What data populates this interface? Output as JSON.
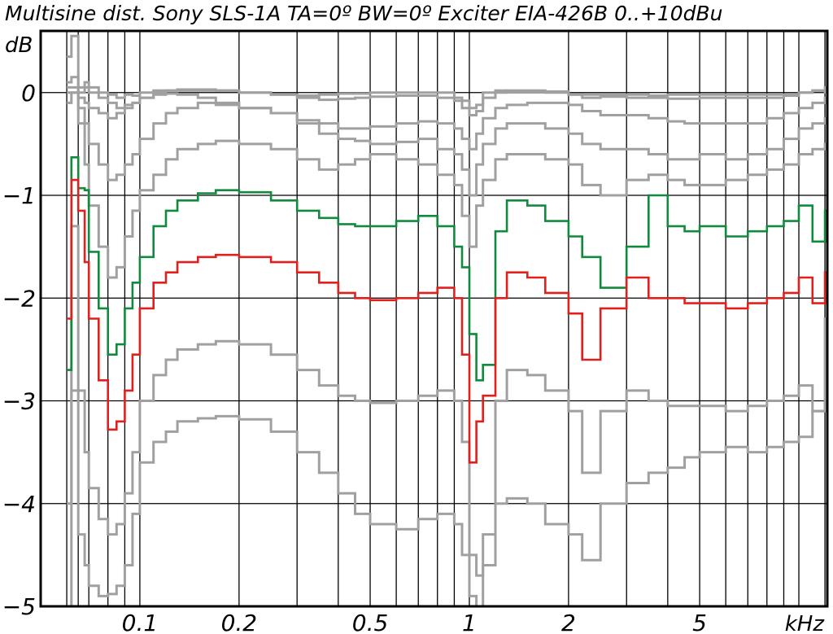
{
  "chart_data": {
    "type": "line",
    "title": "Multisine dist. Sony SLS-1A TA=0º BW=0º Exciter EIA-426B 0..+10dBu",
    "ylabel": "dB",
    "xlabel": "kHz",
    "x_scale": "log",
    "x_unit": "kHz",
    "xlim": [
      0.06,
      12
    ],
    "ylim": [
      -5,
      0.6
    ],
    "grid": true,
    "x_major_ticks": [
      0.1,
      0.2,
      0.5,
      1,
      2,
      5,
      10
    ],
    "x_tick_labels": [
      "0.1",
      "0.2",
      "0.5",
      "1",
      "2",
      "5",
      "kHz"
    ],
    "x_minor_ticks": [
      0.06,
      0.065,
      0.07,
      0.08,
      0.09,
      0.3,
      0.4,
      0.6,
      0.7,
      0.8,
      0.9,
      3,
      4,
      6,
      7,
      8,
      9,
      12
    ],
    "y_ticks": [
      0,
      -1,
      -2,
      -3,
      -4,
      -5
    ],
    "y_tick_labels": [
      "0",
      "−1",
      "−2",
      "−3",
      "−4",
      "−5"
    ],
    "series_style": "step",
    "colors": {
      "green": "#108a3c",
      "red": "#e0201c",
      "gray": "#a0a0a0",
      "axis": "#000000"
    },
    "series": [
      {
        "color": "gray",
        "x": [
          0.06,
          0.062,
          0.065,
          0.068,
          0.07,
          0.075,
          0.08,
          0.085,
          0.09,
          0.095,
          0.1,
          0.11,
          0.12,
          0.13,
          0.15,
          0.17,
          0.2,
          0.25,
          0.3,
          0.35,
          0.4,
          0.45,
          0.5,
          0.6,
          0.7,
          0.8,
          0.9,
          0.95,
          1,
          1.05,
          1.1,
          1.2,
          1.3,
          1.5,
          1.7,
          2,
          2.2,
          2.5,
          3,
          3.5,
          4,
          4.5,
          5,
          6,
          7,
          8,
          9,
          10,
          11,
          12
        ],
        "y": [
          0.35,
          0.55,
          0.05,
          0.1,
          0.05,
          0.0,
          -0.02,
          -0.05,
          -0.02,
          -0.03,
          0.0,
          0.02,
          0.02,
          0.02,
          0.02,
          0.02,
          0.0,
          -0.02,
          -0.03,
          -0.02,
          -0.01,
          -0.01,
          0.0,
          0.0,
          0.0,
          0.0,
          -0.05,
          -0.08,
          -0.15,
          -0.12,
          0.0,
          0.02,
          0.01,
          0.01,
          0.0,
          -0.02,
          -0.02,
          -0.02,
          -0.02,
          -0.03,
          -0.02,
          -0.02,
          -0.02,
          -0.02,
          -0.02,
          -0.02,
          -0.02,
          0.0,
          0.02,
          0.0
        ]
      },
      {
        "color": "gray",
        "x": [
          0.06,
          0.062,
          0.065,
          0.068,
          0.07,
          0.075,
          0.08,
          0.085,
          0.09,
          0.095,
          0.1,
          0.11,
          0.12,
          0.13,
          0.15,
          0.17,
          0.2,
          0.25,
          0.3,
          0.35,
          0.4,
          0.45,
          0.5,
          0.6,
          0.7,
          0.8,
          0.9,
          0.95,
          1,
          1.05,
          1.1,
          1.2,
          1.3,
          1.5,
          1.7,
          2,
          2.2,
          2.5,
          3,
          3.5,
          4,
          4.5,
          5,
          6,
          7,
          8,
          9,
          10,
          11,
          12
        ],
        "y": [
          0.1,
          0.15,
          0.0,
          0.05,
          0.0,
          -0.05,
          -0.1,
          -0.15,
          -0.12,
          -0.1,
          -0.05,
          0.0,
          0.02,
          0.03,
          0.03,
          0.02,
          0.0,
          -0.02,
          -0.05,
          -0.07,
          -0.06,
          -0.05,
          -0.04,
          -0.03,
          -0.03,
          -0.05,
          -0.08,
          -0.15,
          -0.22,
          -0.18,
          -0.05,
          0.0,
          0.02,
          0.02,
          0.01,
          -0.02,
          -0.05,
          -0.04,
          -0.05,
          -0.05,
          -0.06,
          -0.06,
          -0.05,
          -0.05,
          -0.05,
          -0.05,
          -0.03,
          0.0,
          0.02,
          0.05
        ]
      },
      {
        "color": "gray",
        "x": [
          0.06,
          0.062,
          0.065,
          0.068,
          0.07,
          0.075,
          0.08,
          0.085,
          0.09,
          0.095,
          0.1,
          0.11,
          0.12,
          0.13,
          0.15,
          0.17,
          0.2,
          0.25,
          0.3,
          0.35,
          0.4,
          0.45,
          0.5,
          0.6,
          0.7,
          0.8,
          0.9,
          0.95,
          1,
          1.05,
          1.1,
          1.2,
          1.3,
          1.5,
          1.7,
          2,
          2.2,
          2.5,
          3,
          3.5,
          4,
          4.5,
          5,
          6,
          7,
          8,
          9,
          10,
          11,
          12
        ],
        "y": [
          0.05,
          0.05,
          -0.05,
          -0.1,
          -0.15,
          -0.2,
          -0.25,
          -0.2,
          -0.15,
          -0.1,
          -0.05,
          -0.02,
          -0.01,
          -0.02,
          -0.05,
          -0.1,
          -0.15,
          -0.2,
          -0.27,
          -0.3,
          -0.35,
          -0.35,
          -0.33,
          -0.3,
          -0.28,
          -0.3,
          -0.35,
          -0.45,
          -0.55,
          -0.4,
          -0.25,
          -0.15,
          -0.12,
          -0.1,
          -0.1,
          -0.12,
          -0.18,
          -0.22,
          -0.22,
          -0.25,
          -0.28,
          -0.3,
          -0.3,
          -0.3,
          -0.3,
          -0.25,
          -0.2,
          -0.15,
          -0.1,
          -0.05
        ]
      },
      {
        "color": "gray",
        "x": [
          0.06,
          0.062,
          0.065,
          0.068,
          0.07,
          0.075,
          0.08,
          0.085,
          0.09,
          0.095,
          0.1,
          0.11,
          0.12,
          0.13,
          0.15,
          0.17,
          0.2,
          0.25,
          0.3,
          0.35,
          0.4,
          0.45,
          0.5,
          0.6,
          0.7,
          0.8,
          0.9,
          0.95,
          1,
          1.05,
          1.1,
          1.2,
          1.3,
          1.5,
          1.7,
          2,
          2.2,
          2.5,
          3,
          3.5,
          4,
          4.5,
          5,
          6,
          7,
          8,
          9,
          10,
          11,
          12
        ],
        "y": [
          0.0,
          0.0,
          -0.15,
          -0.3,
          -0.5,
          -0.7,
          -0.85,
          -0.8,
          -0.7,
          -0.6,
          -0.45,
          -0.3,
          -0.2,
          -0.15,
          -0.1,
          -0.12,
          -0.15,
          -0.2,
          -0.3,
          -0.4,
          -0.45,
          -0.47,
          -0.5,
          -0.48,
          -0.45,
          -0.55,
          -0.6,
          -0.75,
          -1.0,
          -0.7,
          -0.5,
          -0.35,
          -0.3,
          -0.3,
          -0.35,
          -0.4,
          -0.5,
          -0.55,
          -0.55,
          -0.6,
          -0.65,
          -0.65,
          -0.6,
          -0.65,
          -0.6,
          -0.55,
          -0.45,
          -0.35,
          -0.3,
          -0.25
        ]
      },
      {
        "color": "gray",
        "x": [
          0.06,
          0.062,
          0.065,
          0.068,
          0.07,
          0.075,
          0.08,
          0.085,
          0.09,
          0.095,
          0.1,
          0.11,
          0.12,
          0.13,
          0.15,
          0.17,
          0.2,
          0.25,
          0.3,
          0.35,
          0.4,
          0.45,
          0.5,
          0.6,
          0.7,
          0.8,
          0.9,
          0.95,
          1,
          1.05,
          1.1,
          1.2,
          1.3,
          1.5,
          1.7,
          2,
          2.2,
          2.5,
          3,
          3.5,
          4,
          4.5,
          5,
          6,
          7,
          8,
          9,
          10,
          11,
          12
        ],
        "y": [
          -0.1,
          0.0,
          -0.3,
          -0.7,
          -1.1,
          -1.5,
          -1.8,
          -1.7,
          -1.4,
          -1.15,
          -0.95,
          -0.8,
          -0.65,
          -0.55,
          -0.5,
          -0.47,
          -0.5,
          -0.55,
          -0.65,
          -0.75,
          -0.7,
          -0.65,
          -0.6,
          -0.65,
          -0.7,
          -0.8,
          -0.9,
          -1.2,
          -1.5,
          -1.1,
          -0.85,
          -0.65,
          -0.6,
          -0.6,
          -0.65,
          -0.7,
          -0.9,
          -1.0,
          -0.85,
          -0.8,
          -0.85,
          -0.9,
          -0.9,
          -0.85,
          -0.8,
          -0.75,
          -0.7,
          -0.6,
          -0.55,
          -0.5
        ]
      },
      {
        "name": "",
        "color": "green",
        "x": [
          0.06,
          0.062,
          0.065,
          0.068,
          0.07,
          0.075,
          0.08,
          0.085,
          0.09,
          0.095,
          0.1,
          0.11,
          0.12,
          0.13,
          0.15,
          0.17,
          0.2,
          0.25,
          0.3,
          0.35,
          0.4,
          0.45,
          0.5,
          0.6,
          0.7,
          0.8,
          0.9,
          0.95,
          1,
          1.05,
          1.1,
          1.2,
          1.3,
          1.5,
          1.7,
          2,
          2.2,
          2.5,
          3,
          3.5,
          4,
          4.5,
          5,
          6,
          7,
          8,
          9,
          10,
          11,
          12
        ],
        "y": [
          -2.7,
          -0.63,
          -0.93,
          -0.95,
          -1.55,
          -2.1,
          -2.55,
          -2.45,
          -2.1,
          -1.85,
          -1.6,
          -1.3,
          -1.15,
          -1.05,
          -0.98,
          -0.95,
          -0.97,
          -1.05,
          -1.15,
          -1.22,
          -1.28,
          -1.3,
          -1.3,
          -1.25,
          -1.2,
          -1.3,
          -1.5,
          -1.7,
          -2.35,
          -2.8,
          -2.65,
          -1.35,
          -1.05,
          -1.1,
          -1.25,
          -1.4,
          -1.6,
          -1.9,
          -1.5,
          -1.0,
          -1.3,
          -1.35,
          -1.3,
          -1.4,
          -1.35,
          -1.3,
          -1.25,
          -1.1,
          -1.45,
          -1.15
        ]
      },
      {
        "name": "",
        "color": "red",
        "x": [
          0.06,
          0.062,
          0.065,
          0.068,
          0.07,
          0.075,
          0.08,
          0.085,
          0.09,
          0.095,
          0.1,
          0.11,
          0.12,
          0.13,
          0.15,
          0.17,
          0.2,
          0.25,
          0.3,
          0.35,
          0.4,
          0.45,
          0.5,
          0.6,
          0.7,
          0.8,
          0.9,
          0.95,
          1,
          1.05,
          1.1,
          1.2,
          1.3,
          1.5,
          1.7,
          2,
          2.2,
          2.5,
          3,
          3.5,
          4,
          4.5,
          5,
          6,
          7,
          8,
          9,
          10,
          11,
          12
        ],
        "y": [
          -2.2,
          -0.85,
          -1.15,
          -1.65,
          -2.2,
          -2.8,
          -3.28,
          -3.2,
          -2.9,
          -2.55,
          -2.1,
          -1.85,
          -1.75,
          -1.65,
          -1.6,
          -1.58,
          -1.6,
          -1.65,
          -1.75,
          -1.85,
          -1.95,
          -2.0,
          -2.02,
          -2.0,
          -1.95,
          -1.9,
          -2.0,
          -2.55,
          -3.6,
          -3.2,
          -2.95,
          -2.0,
          -1.75,
          -1.8,
          -1.95,
          -2.15,
          -2.6,
          -2.1,
          -1.8,
          -2.0,
          -2.0,
          -2.05,
          -2.05,
          -2.1,
          -2.05,
          -2.0,
          -1.95,
          -1.8,
          -2.05,
          -1.75
        ]
      },
      {
        "color": "gray",
        "x": [
          0.06,
          0.062,
          0.065,
          0.068,
          0.07,
          0.075,
          0.08,
          0.085,
          0.09,
          0.095,
          0.1,
          0.11,
          0.12,
          0.13,
          0.15,
          0.17,
          0.2,
          0.25,
          0.3,
          0.35,
          0.4,
          0.45,
          0.5,
          0.6,
          0.7,
          0.8,
          0.9,
          0.95,
          1,
          1.05,
          1.1,
          1.2,
          1.3,
          1.5,
          1.7,
          2,
          2.2,
          2.5,
          3,
          3.5,
          4,
          4.5,
          5,
          6,
          7,
          8,
          9,
          10,
          11,
          12
        ],
        "y": [
          -4.0,
          -1.3,
          -2.9,
          -3.5,
          -3.85,
          -4.15,
          -4.3,
          -4.2,
          -3.9,
          -3.5,
          -3.0,
          -2.75,
          -2.6,
          -2.5,
          -2.45,
          -2.42,
          -2.45,
          -2.55,
          -2.7,
          -2.85,
          -2.95,
          -3.0,
          -3.02,
          -3.0,
          -2.95,
          -2.9,
          -3.0,
          -3.4,
          -4.5,
          -4.7,
          -4.3,
          -3.0,
          -2.7,
          -2.75,
          -2.9,
          -3.1,
          -3.7,
          -3.1,
          -2.9,
          -3.0,
          -3.05,
          -3.05,
          -3.05,
          -3.1,
          -3.05,
          -3.0,
          -2.95,
          -2.85,
          -3.1,
          -2.2
        ]
      },
      {
        "color": "gray",
        "x": [
          0.06,
          0.062,
          0.065,
          0.068,
          0.07,
          0.075,
          0.08,
          0.085,
          0.09,
          0.095,
          0.1,
          0.11,
          0.12,
          0.13,
          0.15,
          0.17,
          0.2,
          0.25,
          0.3,
          0.35,
          0.4,
          0.45,
          0.5,
          0.6,
          0.7,
          0.8,
          0.9,
          0.95,
          1,
          1.05,
          1.1,
          1.2,
          1.3,
          1.5,
          1.7,
          2,
          2.2,
          2.5,
          3,
          3.5,
          4,
          4.5,
          5,
          6,
          7,
          8,
          9,
          10,
          11,
          12
        ],
        "y": [
          -5.0,
          -2.9,
          -4.3,
          -4.6,
          -4.8,
          -4.9,
          -4.88,
          -4.8,
          -4.6,
          -4.1,
          -3.6,
          -3.4,
          -3.3,
          -3.2,
          -3.17,
          -3.15,
          -3.18,
          -3.3,
          -3.5,
          -3.7,
          -3.9,
          -4.1,
          -4.2,
          -4.25,
          -4.15,
          -4.1,
          -4.2,
          -4.5,
          -4.9,
          -5.0,
          -4.6,
          -4.0,
          -3.95,
          -4.0,
          -4.2,
          -4.3,
          -4.55,
          -4.0,
          -3.8,
          -3.7,
          -3.65,
          -3.55,
          -3.5,
          -3.45,
          -3.5,
          -3.45,
          -3.4,
          -3.35,
          -3.1,
          -3.0
        ]
      }
    ]
  }
}
